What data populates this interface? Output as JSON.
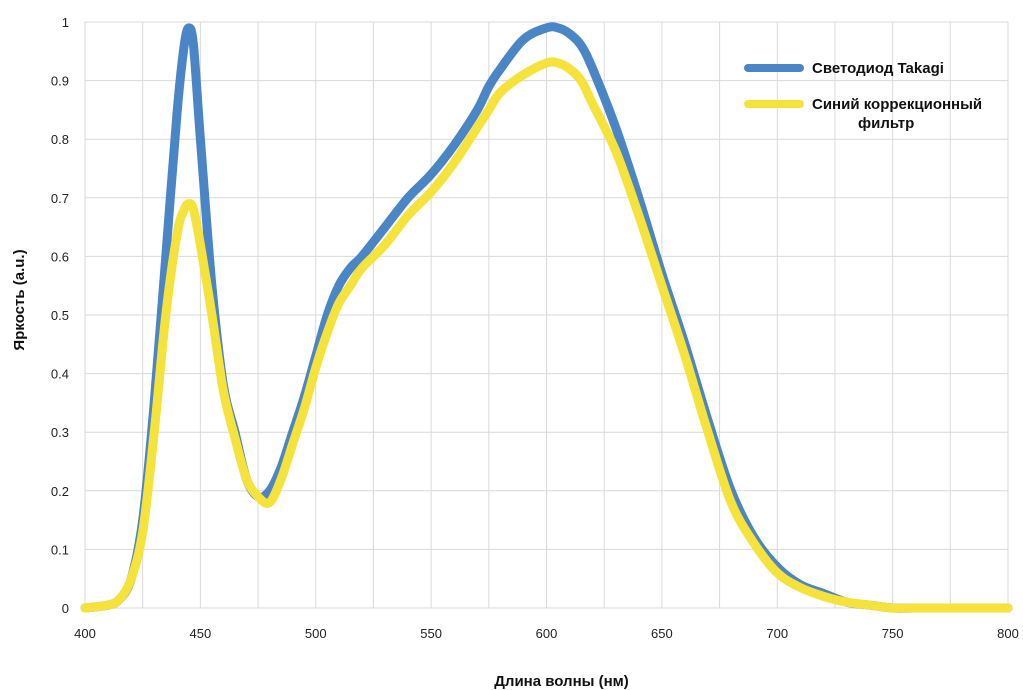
{
  "chart_data": {
    "type": "line",
    "title": "",
    "xlabel": "Длина волны (нм)",
    "ylabel": "Яркость (a.u.)",
    "xlim": [
      400,
      800
    ],
    "ylim": [
      0,
      1
    ],
    "x_ticks": [
      "400",
      "450",
      "500",
      "550",
      "600",
      "650",
      "700",
      "750",
      "800"
    ],
    "y_ticks": [
      "0",
      "0.1",
      "0.2",
      "0.3",
      "0.4",
      "0.5",
      "0.6",
      "0.7",
      "0.8",
      "0.9",
      "1"
    ],
    "grid": true,
    "legend_position": "top-right",
    "series": [
      {
        "name": "Светодиод Takagi",
        "color": "#4a86c5",
        "x": [
          400,
          410,
          415,
          420,
          425,
          430,
          435,
          440,
          443,
          445,
          447,
          450,
          455,
          460,
          465,
          470,
          475,
          480,
          485,
          490,
          495,
          500,
          505,
          510,
          515,
          520,
          530,
          540,
          550,
          560,
          570,
          575,
          580,
          590,
          600,
          605,
          610,
          615,
          620,
          630,
          640,
          650,
          660,
          670,
          680,
          690,
          700,
          710,
          720,
          730,
          740,
          750,
          760,
          780,
          800
        ],
        "y": [
          0.0,
          0.005,
          0.015,
          0.05,
          0.15,
          0.35,
          0.6,
          0.85,
          0.96,
          0.99,
          0.96,
          0.8,
          0.55,
          0.38,
          0.3,
          0.22,
          0.19,
          0.2,
          0.24,
          0.3,
          0.36,
          0.43,
          0.5,
          0.55,
          0.58,
          0.6,
          0.65,
          0.7,
          0.74,
          0.79,
          0.85,
          0.89,
          0.92,
          0.97,
          0.99,
          0.99,
          0.98,
          0.96,
          0.92,
          0.82,
          0.7,
          0.57,
          0.45,
          0.32,
          0.2,
          0.12,
          0.07,
          0.04,
          0.025,
          0.01,
          0.005,
          0.0,
          0.0,
          0.0,
          0.0
        ]
      },
      {
        "name": "Синий коррекционный фильтр",
        "color": "#f5e23a",
        "x": [
          400,
          410,
          415,
          420,
          425,
          430,
          435,
          440,
          443,
          445,
          447,
          450,
          455,
          460,
          465,
          470,
          475,
          480,
          485,
          490,
          495,
          500,
          505,
          510,
          515,
          520,
          530,
          540,
          550,
          560,
          570,
          575,
          580,
          590,
          600,
          605,
          610,
          615,
          620,
          630,
          640,
          650,
          660,
          670,
          680,
          690,
          700,
          710,
          720,
          730,
          740,
          750,
          760,
          780,
          800
        ],
        "y": [
          0.0,
          0.005,
          0.015,
          0.05,
          0.13,
          0.3,
          0.5,
          0.64,
          0.68,
          0.69,
          0.68,
          0.62,
          0.5,
          0.37,
          0.29,
          0.22,
          0.19,
          0.18,
          0.22,
          0.28,
          0.34,
          0.41,
          0.47,
          0.52,
          0.55,
          0.58,
          0.62,
          0.67,
          0.71,
          0.76,
          0.82,
          0.85,
          0.88,
          0.91,
          0.93,
          0.93,
          0.92,
          0.9,
          0.86,
          0.78,
          0.67,
          0.55,
          0.43,
          0.3,
          0.18,
          0.11,
          0.06,
          0.035,
          0.02,
          0.01,
          0.005,
          0.0,
          0.0,
          0.0,
          0.0
        ]
      }
    ]
  },
  "legend": {
    "items": [
      {
        "lines": [
          "Светодиод Takagi"
        ],
        "color": "#4a86c5"
      },
      {
        "lines": [
          "Синий коррекционный",
          "фильтр"
        ],
        "color": "#f5e23a"
      }
    ]
  }
}
